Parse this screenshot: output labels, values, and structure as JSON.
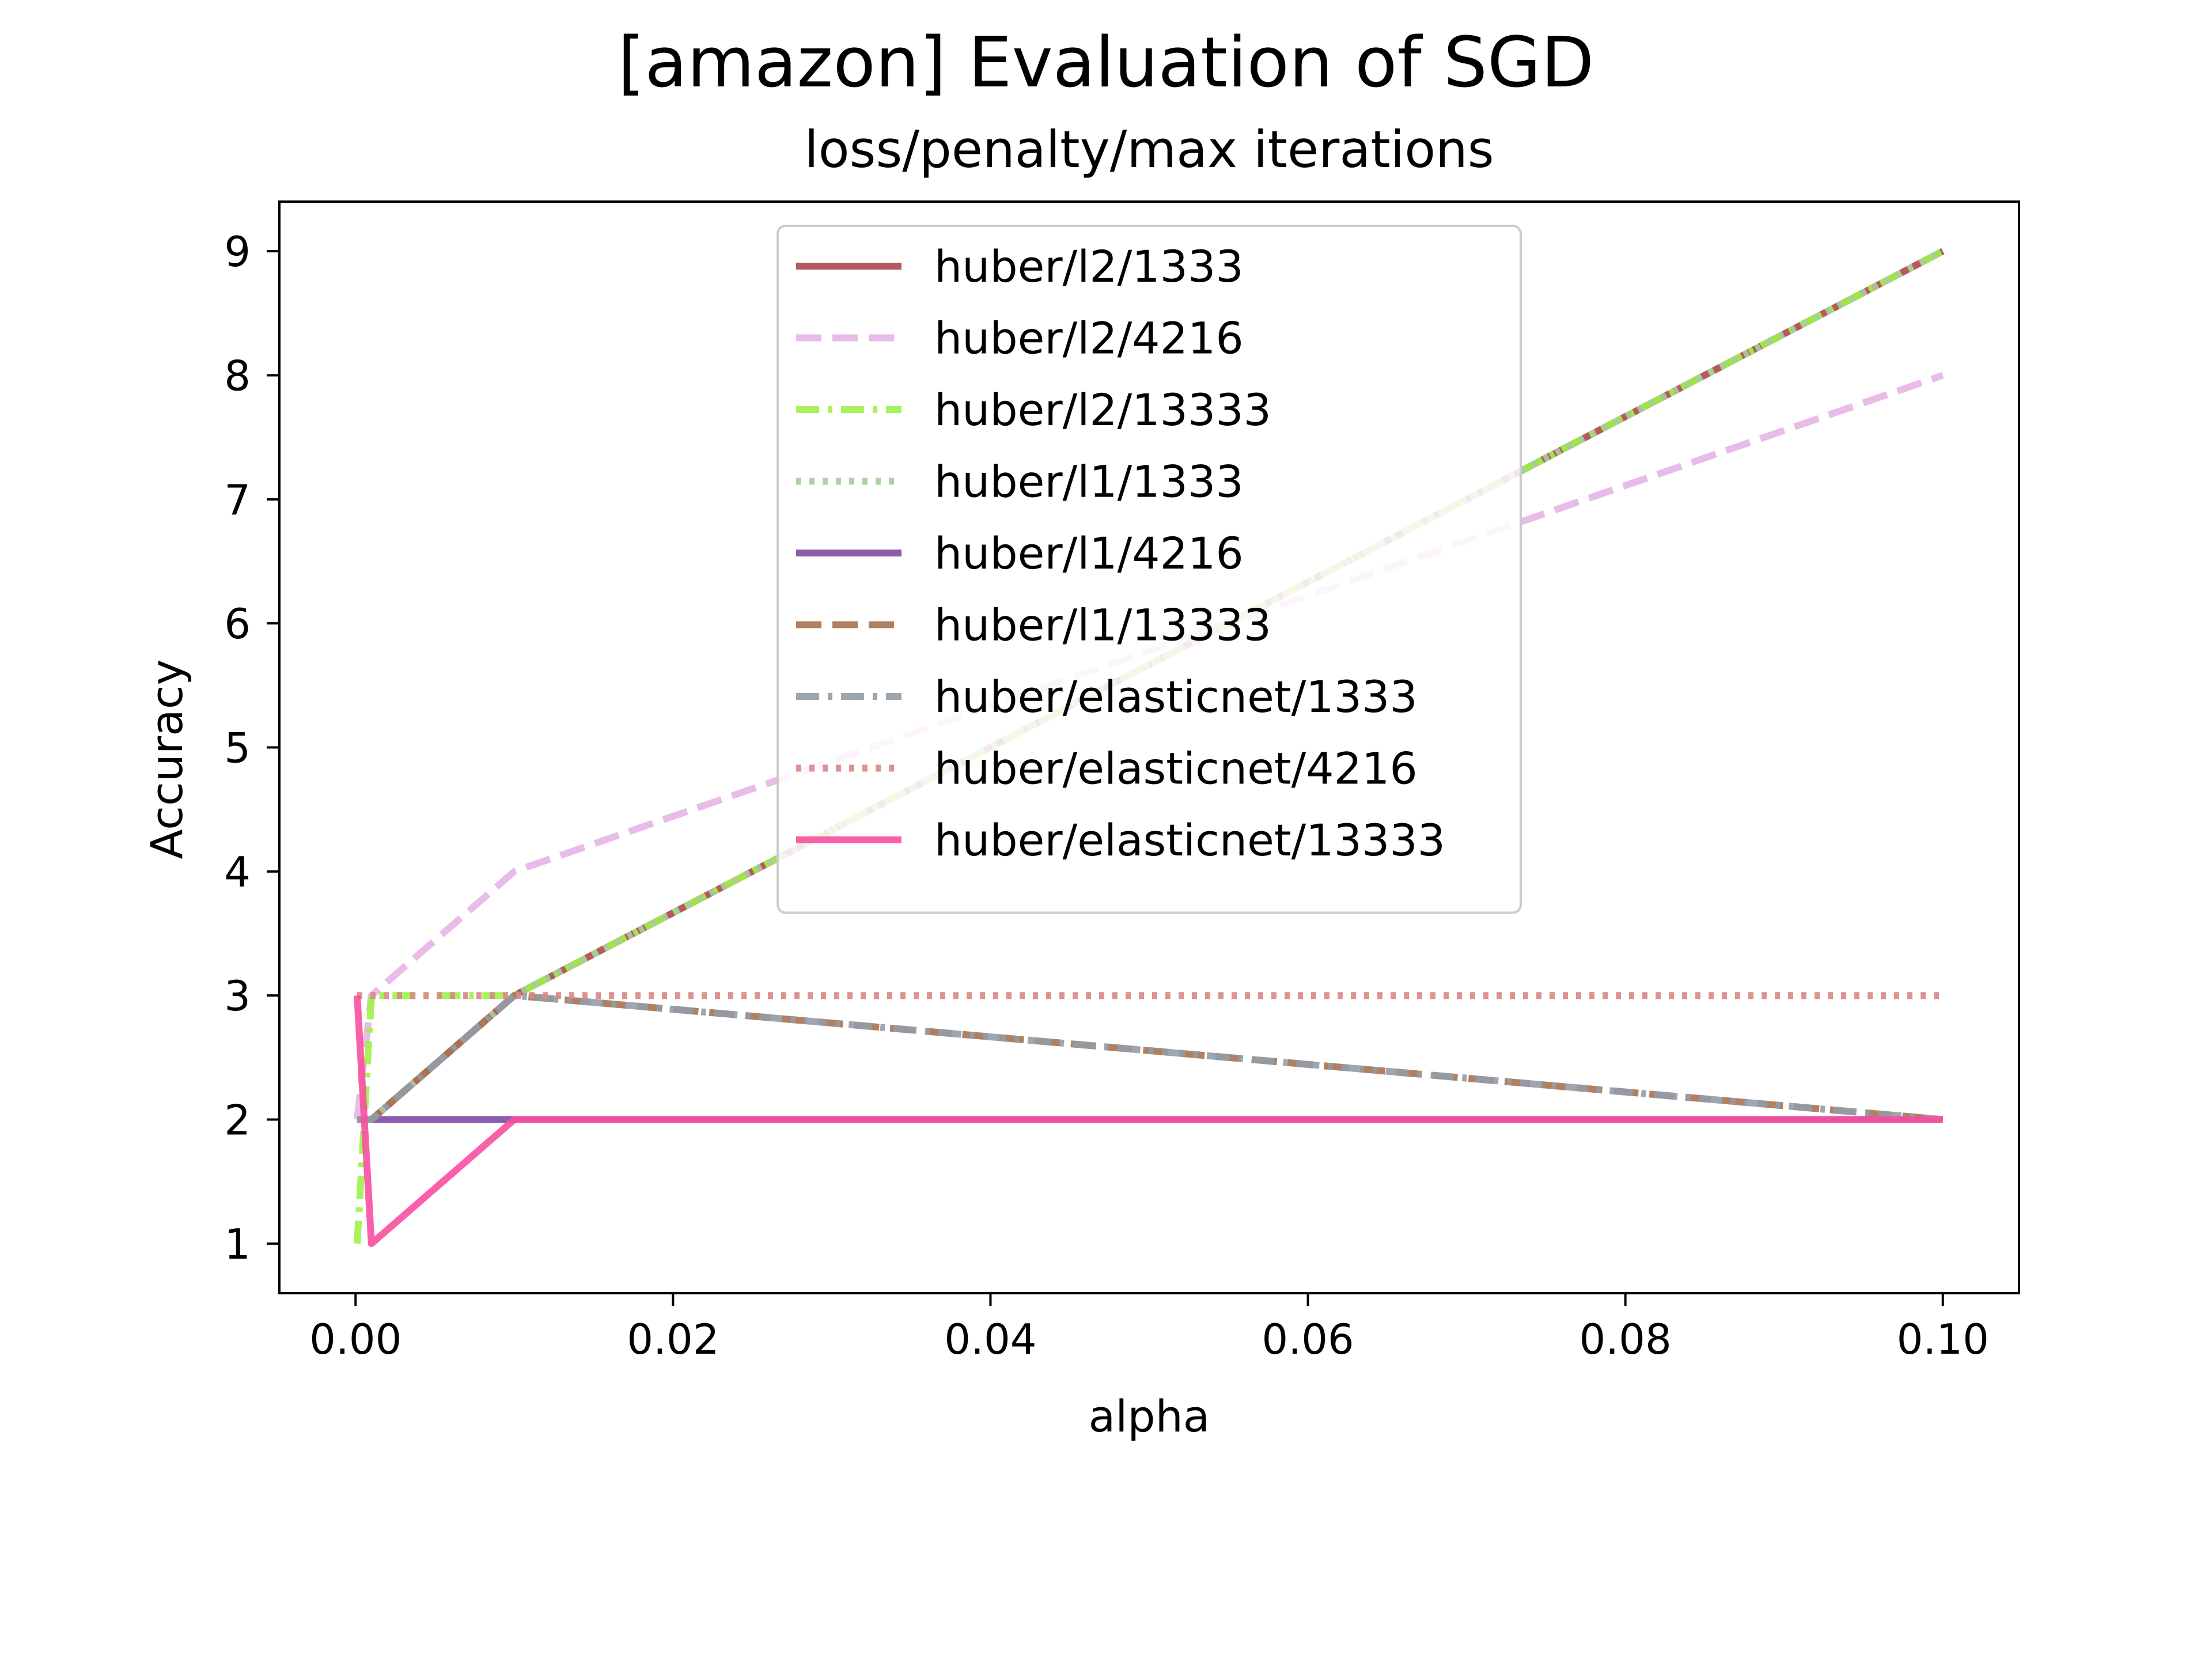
{
  "chart_data": {
    "type": "line",
    "title": "[amazon] Evaluation of SGD",
    "subtitle": "loss/penalty/max iterations",
    "xlabel": "alpha",
    "ylabel": "Accuracy",
    "xlim": [
      -0.0048,
      0.1048
    ],
    "ylim": [
      0.6,
      9.4
    ],
    "x": [
      0.0001,
      0.001,
      0.01,
      0.1
    ],
    "x_ticks": [
      0.0,
      0.02,
      0.04,
      0.06,
      0.08,
      0.1
    ],
    "x_tick_labels": [
      "0.00",
      "0.02",
      "0.04",
      "0.06",
      "0.08",
      "0.10"
    ],
    "y_ticks": [
      1,
      2,
      3,
      4,
      5,
      6,
      7,
      8,
      9
    ],
    "y_tick_labels": [
      "1",
      "2",
      "3",
      "4",
      "5",
      "6",
      "7",
      "8",
      "9"
    ],
    "grid": false,
    "legend_position": "upper-center",
    "series": [
      {
        "name": "huber/l2/1333",
        "values": [
          2,
          2,
          3,
          9
        ],
        "color": "#b0474f",
        "dash": "solid"
      },
      {
        "name": "huber/l2/4216",
        "values": [
          2,
          3,
          4,
          8
        ],
        "color": "#e5b5e5",
        "dash": "dashed"
      },
      {
        "name": "huber/l2/13333",
        "values": [
          1,
          3,
          3,
          9
        ],
        "color": "#9ef24a",
        "dash": "dashdot"
      },
      {
        "name": "huber/l1/1333",
        "values": [
          2,
          2,
          3,
          9
        ],
        "color": "#a6cc9e",
        "dash": "dotted"
      },
      {
        "name": "huber/l1/4216",
        "values": [
          2,
          2,
          2,
          2
        ],
        "color": "#7d4ba4",
        "dash": "solid"
      },
      {
        "name": "huber/l1/13333",
        "values": [
          2,
          2,
          3,
          2
        ],
        "color": "#a87250",
        "dash": "dashed"
      },
      {
        "name": "huber/elasticnet/1333",
        "values": [
          2,
          2,
          3,
          2
        ],
        "color": "#939ca7",
        "dash": "dashdot"
      },
      {
        "name": "huber/elasticnet/4216",
        "values": [
          3,
          3,
          3,
          3
        ],
        "color": "#d98885",
        "dash": "dotted"
      },
      {
        "name": "huber/elasticnet/13333",
        "values": [
          3,
          1,
          2,
          2
        ],
        "color": "#f84fa0",
        "dash": "solid"
      }
    ]
  }
}
